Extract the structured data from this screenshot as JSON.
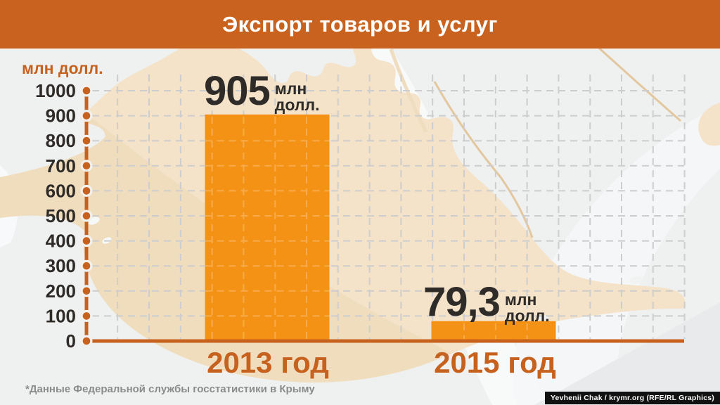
{
  "header": {
    "title": "Экспорт товаров и услуг"
  },
  "chart_data": {
    "type": "bar",
    "title": "Экспорт товаров и услуг",
    "categories": [
      "2013 год",
      "2015 год"
    ],
    "values": [
      905,
      79.3
    ],
    "value_labels": [
      {
        "number": "905",
        "unit_lines": [
          "млн",
          "долл."
        ]
      },
      {
        "number": "79,3",
        "unit_lines": [
          "млн",
          "долл."
        ]
      }
    ],
    "ylabel": "млн долл.",
    "ylim": [
      0,
      1000
    ],
    "ytick_step": 100,
    "yticks": [
      0,
      100,
      200,
      300,
      400,
      500,
      600,
      700,
      800,
      900,
      1000
    ],
    "grid": true,
    "legend_position": "none"
  },
  "footnote": "*Данные Федеральной службы госстатистики в Крыму",
  "credit": "Yevhenii Chak / krymr.org (RFE/RL Graphics)",
  "colors": {
    "header_bg": "#C8621E",
    "bar": "#F39215",
    "bar_grid_overlay": "#F7AB4C",
    "axis": "#C7611E",
    "axis_dot_ring": "#F3F1EE",
    "tick_text": "#2E2B28",
    "value_text": "#2E2B28",
    "xlabel_text": "#C7611E",
    "ylabel_text": "#C7611E",
    "grid": "#CDCDCD",
    "background": "#EFF0F0",
    "map_land": "#F4E3C8",
    "map_land_shade": "#EDD8B6",
    "road_line": "#E3C79E",
    "footnote_text": "#8B8B8B",
    "credit_bg": "#111111",
    "credit_text": "#FFFFFF"
  }
}
